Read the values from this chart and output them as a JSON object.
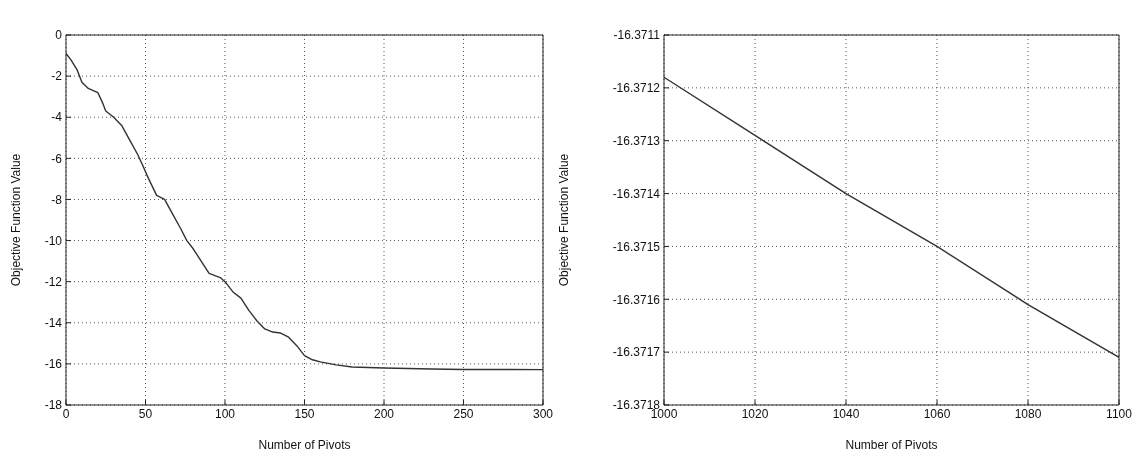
{
  "chart_data": [
    {
      "type": "line",
      "xlabel": "Number of Pivots",
      "ylabel": "Objective Function Value",
      "xlim": [
        0,
        300
      ],
      "xticks": [
        0,
        50,
        100,
        150,
        200,
        250,
        300
      ],
      "ylim": [
        -18,
        0
      ],
      "yticks": [
        -18,
        -16,
        -14,
        -12,
        -10,
        -8,
        -6,
        -4,
        -2,
        0
      ],
      "grid": true,
      "line_style": "solid",
      "marker": "none",
      "series": [
        {
          "color": "#333333",
          "x": [
            0,
            3,
            7,
            10,
            14,
            20,
            23,
            25,
            30,
            35,
            40,
            45,
            48,
            52,
            57,
            62,
            67,
            72,
            76,
            80,
            85,
            90,
            97,
            100,
            105,
            110,
            115,
            120,
            125,
            130,
            135,
            140,
            145,
            150,
            155,
            160,
            170,
            180,
            200,
            230,
            250,
            300
          ],
          "values": [
            -0.9,
            -1.2,
            -1.7,
            -2.3,
            -2.6,
            -2.8,
            -3.3,
            -3.7,
            -4.0,
            -4.4,
            -5.1,
            -5.8,
            -6.3,
            -7.0,
            -7.8,
            -8.0,
            -8.7,
            -9.4,
            -10.0,
            -10.4,
            -11.0,
            -11.6,
            -11.8,
            -12.0,
            -12.5,
            -12.8,
            -13.4,
            -13.9,
            -14.3,
            -14.45,
            -14.5,
            -14.7,
            -15.1,
            -15.6,
            -15.8,
            -15.9,
            -16.05,
            -16.15,
            -16.2,
            -16.25,
            -16.27,
            -16.28
          ]
        }
      ]
    },
    {
      "type": "line",
      "xlabel": "Number of Pivots",
      "ylabel": "Objective Function Value",
      "xlim": [
        1000,
        1100
      ],
      "xticks": [
        1000,
        1020,
        1040,
        1060,
        1080,
        1100
      ],
      "ylim": [
        -16.3718,
        -16.3711
      ],
      "yticks": [
        -16.3718,
        -16.3717,
        -16.3716,
        -16.3715,
        -16.3714,
        -16.3713,
        -16.3712,
        -16.3711
      ],
      "grid": true,
      "line_style": "solid",
      "marker": "none",
      "series": [
        {
          "color": "#333333",
          "x": [
            1000,
            1020,
            1040,
            1060,
            1080,
            1100
          ],
          "values": [
            -16.37118,
            -16.37129,
            -16.3714,
            -16.3715,
            -16.37161,
            -16.37171
          ]
        }
      ]
    }
  ]
}
